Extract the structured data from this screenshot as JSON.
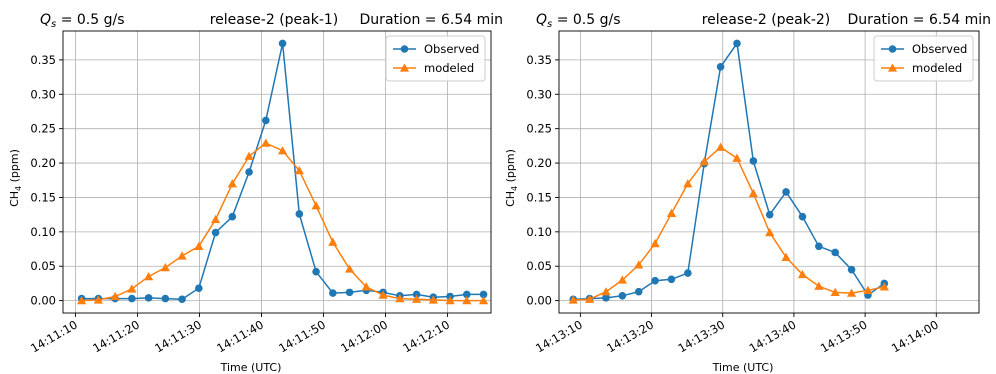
{
  "chart_data": [
    {
      "type": "line",
      "title_left": "Q_s = 0.5 g/s",
      "title_center": "release-2 (peak-1)",
      "title_right": "Duration = 6.54 min",
      "xlabel": "Time (UTC)",
      "ylabel": "CH4 (ppm)",
      "xlim_seconds": [
        -2,
        67
      ],
      "ylim": [
        -0.018,
        0.392
      ],
      "grid": true,
      "legend_position": "top-right",
      "x_tick_labels": [
        "14:11:10",
        "14:11:20",
        "14:11:30",
        "14:11:40",
        "14:11:50",
        "14:12:00",
        "14:12:10"
      ],
      "x_tick_seconds": [
        0,
        10,
        20,
        30,
        40,
        50,
        60
      ],
      "y_ticks": [
        0.0,
        0.05,
        0.1,
        0.15,
        0.2,
        0.25,
        0.3,
        0.35
      ],
      "y_tick_labels": [
        "0.00",
        "0.05",
        "0.10",
        "0.15",
        "0.20",
        "0.25",
        "0.30",
        "0.35"
      ],
      "series": [
        {
          "name": "Observed",
          "color": "#1f77b4",
          "marker": "circle",
          "x_seconds": [
            1,
            3.7,
            6.4,
            9.1,
            11.8,
            14.5,
            17.2,
            19.9,
            22.6,
            25.3,
            28,
            30.7,
            33.4,
            36.1,
            38.8,
            41.5,
            44.2,
            46.9,
            49.6,
            52.3,
            55,
            57.7,
            60.4,
            63.1,
            65.8
          ],
          "values": [
            0.003,
            0.003,
            0.003,
            0.003,
            0.004,
            0.003,
            0.002,
            0.018,
            0.099,
            0.122,
            0.187,
            0.262,
            0.374,
            0.126,
            0.042,
            0.011,
            0.012,
            0.015,
            0.012,
            0.007,
            0.009,
            0.005,
            0.006,
            0.009,
            0.009
          ]
        },
        {
          "name": "modeled",
          "color": "#ff7f0e",
          "marker": "triangle",
          "x_seconds": [
            1,
            3.7,
            6.4,
            9.1,
            11.8,
            14.5,
            17.2,
            19.9,
            22.6,
            25.3,
            28,
            30.7,
            33.4,
            36.1,
            38.8,
            41.5,
            44.2,
            46.9,
            49.6,
            52.3,
            55,
            57.7,
            60.4,
            63.1,
            65.8
          ],
          "values": [
            0.0,
            0.001,
            0.006,
            0.017,
            0.035,
            0.048,
            0.065,
            0.079,
            0.118,
            0.17,
            0.21,
            0.229,
            0.218,
            0.189,
            0.138,
            0.085,
            0.046,
            0.02,
            0.008,
            0.003,
            0.002,
            0.001,
            0.0,
            0.0,
            0.0
          ]
        }
      ]
    },
    {
      "type": "line",
      "title_left": "Q_s = 0.5 g/s",
      "title_center": "release-2 (peak-2)",
      "title_right": "Duration = 6.54 min",
      "xlabel": "Time (UTC)",
      "ylabel": "CH4 (ppm)",
      "xlim_seconds": [
        -3,
        56
      ],
      "ylim": [
        -0.018,
        0.392
      ],
      "grid": true,
      "legend_position": "top-right",
      "x_tick_labels": [
        "14:13:10",
        "14:13:20",
        "14:13:30",
        "14:13:40",
        "14:13:50",
        "14:14:00"
      ],
      "x_tick_seconds": [
        0,
        10,
        20,
        30,
        40,
        50
      ],
      "y_ticks": [
        0.0,
        0.05,
        0.1,
        0.15,
        0.2,
        0.25,
        0.3,
        0.35
      ],
      "y_tick_labels": [
        "0.00",
        "0.05",
        "0.10",
        "0.15",
        "0.20",
        "0.25",
        "0.30",
        "0.35"
      ],
      "series": [
        {
          "name": "Observed",
          "color": "#1f77b4",
          "marker": "circle",
          "x_seconds": [
            -1,
            1.3,
            3.6,
            5.9,
            8.2,
            10.5,
            12.8,
            15.1,
            17.4,
            19.7,
            22,
            24.3,
            26.6,
            28.9,
            31.2,
            33.5,
            35.8,
            38.1,
            40.4,
            42.7,
            45,
            47.3,
            49.6,
            51.9,
            54.2
          ],
          "values": [
            0.002,
            0.003,
            0.004,
            0.007,
            0.013,
            0.029,
            0.031,
            0.04,
            0.199,
            0.34,
            0.374,
            0.203,
            0.125,
            0.158,
            0.122,
            0.079,
            0.07,
            0.045,
            0.008,
            0.025,
            null,
            null,
            null,
            null,
            null
          ]
        },
        {
          "name": "modeled",
          "color": "#ff7f0e",
          "marker": "triangle",
          "x_seconds": [
            -1,
            1.3,
            3.6,
            5.9,
            8.2,
            10.5,
            12.8,
            15.1,
            17.4,
            19.7,
            22,
            24.3,
            26.6,
            28.9,
            31.2,
            33.5,
            35.8,
            38.1,
            40.4,
            42.7
          ],
          "values": [
            0.001,
            0.002,
            0.013,
            0.03,
            0.052,
            0.083,
            0.127,
            0.17,
            0.202,
            0.223,
            0.207,
            0.156,
            0.099,
            0.063,
            0.038,
            0.021,
            0.012,
            0.011,
            0.015,
            0.02
          ]
        }
      ]
    }
  ]
}
